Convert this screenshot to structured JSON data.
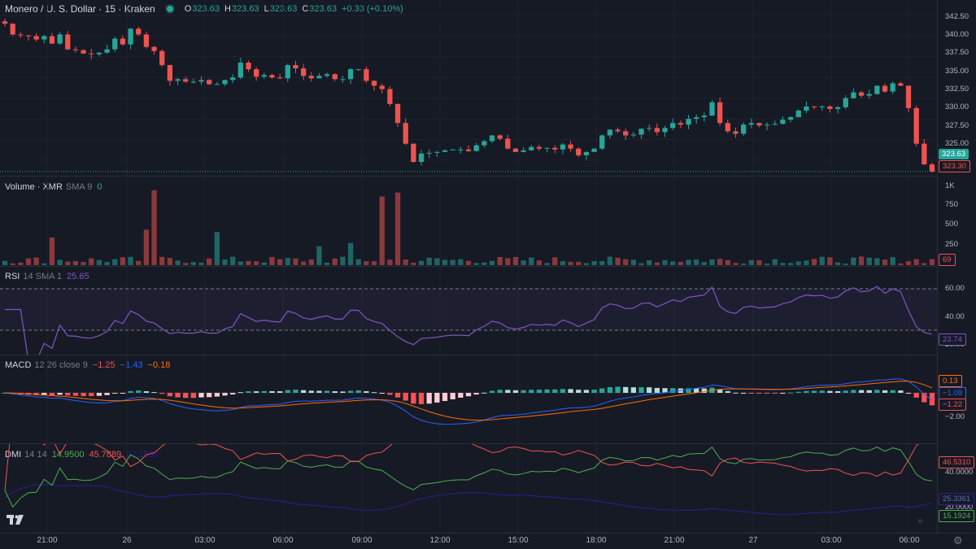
{
  "header": {
    "symbol": "Monero / U. S. Dollar · 15 · Kraken",
    "o_label": "O",
    "o_value": "323.63",
    "h_label": "H",
    "h_value": "323.63",
    "l_label": "L",
    "l_value": "323.63",
    "c_label": "C",
    "c_value": "323.63",
    "change": "+0.33 (+0.10%)"
  },
  "price_axis": [
    "342.50",
    "340.00",
    "337.50",
    "335.00",
    "332.50",
    "330.00",
    "327.50",
    "325.00"
  ],
  "price_tags": {
    "last": "323.63",
    "other": "323.30"
  },
  "volume": {
    "title": "Volume · XMR",
    "params": "SMA 9",
    "value": "0",
    "axis": [
      "1K",
      "750",
      "500",
      "250"
    ],
    "tag": "69"
  },
  "rsi": {
    "title": "RSI",
    "params": "14 SMA 1",
    "value": "25.65",
    "axis": [
      "60.00",
      "40.00",
      "20.00"
    ],
    "tag": "23.74"
  },
  "macd": {
    "title": "MACD",
    "params": "12 26 close 9",
    "v1": "−1.25",
    "v2": "−1.43",
    "v3": "−0.18",
    "axis": [
      "−2.00"
    ],
    "tags": [
      "0.13",
      "−1.09",
      "−1.22"
    ]
  },
  "dmi": {
    "title": "DMI",
    "params": "14 14",
    "v1": "14.9500",
    "v2": "45.7889",
    "v3": "27.1530",
    "axis": [
      "40.0000",
      "20.0000"
    ],
    "tags": [
      "46.5310",
      "25.3361",
      "15.1924"
    ]
  },
  "time_axis": [
    "21:00",
    "26",
    "03:00",
    "06:00",
    "09:00",
    "12:00",
    "15:00",
    "18:00",
    "21:00",
    "27",
    "03:00",
    "06:00"
  ],
  "colors": {
    "up": "#26a69a",
    "down": "#ef5350",
    "rsi": "#7e57c2",
    "macd": "#2962ff",
    "signal": "#ff6d00",
    "bg": "#161a25"
  },
  "chart_data": {
    "type": "candlestick",
    "close_series": [
      341.5,
      340.2,
      340.1,
      340.0,
      339.6,
      340.0,
      339.1,
      340.2,
      338.4,
      338.3,
      337.9,
      337.8,
      338.0,
      338.4,
      339.7,
      339.0,
      340.9,
      340.2,
      338.7,
      338.2,
      336.5,
      334.6,
      334.8,
      334.5,
      334.5,
      334.7,
      334.2,
      334.2,
      334.7,
      335.0,
      336.8,
      336.0,
      335.1,
      335.3,
      335.0,
      334.9,
      336.5,
      336.1,
      335.2,
      334.9,
      335.2,
      335.4,
      334.8,
      334.8,
      336.0,
      336.0,
      334.6,
      334.0,
      333.6,
      331.8,
      329.5,
      327.0,
      324.8,
      325.8,
      325.9,
      326.0,
      326.2,
      326.3,
      326.3,
      326.1,
      326.8,
      327.3,
      328.0,
      327.6,
      326.4,
      326.0,
      326.2,
      326.6,
      326.4,
      326.5,
      326.3,
      326.9,
      326.4,
      325.6,
      326.0,
      326.4,
      328.0,
      328.7,
      328.5,
      328.0,
      328.1,
      328.8,
      328.9,
      328.4,
      328.9,
      329.5,
      329.3,
      330.0,
      330.2,
      330.4,
      332.0,
      329.5,
      328.5,
      328.2,
      329.3,
      329.5,
      329.2,
      329.3,
      329.4,
      329.9,
      330.2,
      331.0,
      331.5,
      331.4,
      331.5,
      331.2,
      331.4,
      332.5,
      333.2,
      332.8,
      333.0,
      334.0,
      333.3,
      334.3,
      334.0,
      331.3,
      327.0,
      324.5,
      323.63
    ],
    "last": 323.63,
    "ylim": [
      323,
      343
    ]
  }
}
